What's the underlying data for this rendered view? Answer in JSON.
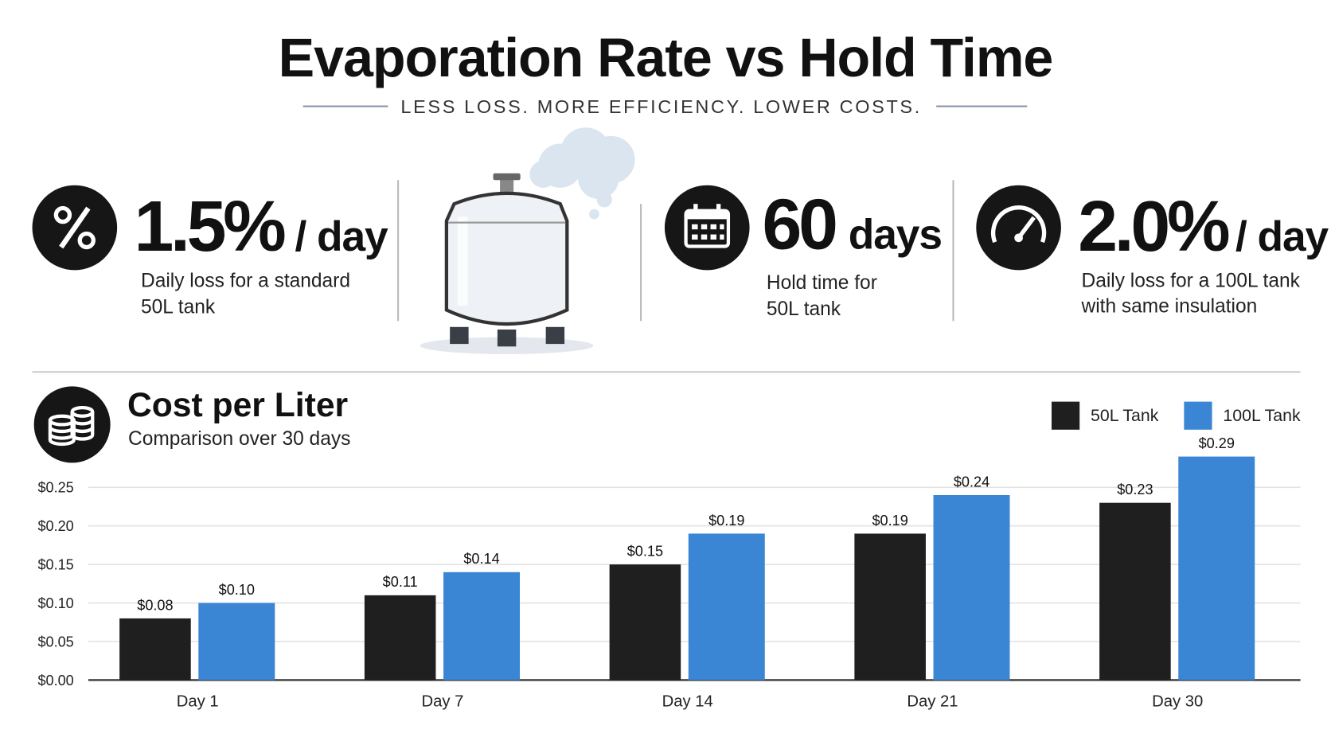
{
  "title": "Evaporation Rate vs Hold Time",
  "subtitle": "LESS LOSS. MORE EFFICIENCY. LOWER COSTS.",
  "stats": [
    {
      "value": "1.5%",
      "unit": "/ day",
      "description": [
        "Daily loss for a standard",
        "50L tank"
      ]
    },
    {
      "value": "60",
      "unit": "days",
      "description": [
        "Hold time for",
        "50L tank"
      ]
    },
    {
      "value": "2.0%",
      "unit": "/ day",
      "description": [
        "Daily loss for a 100L tank",
        "with same insulation"
      ]
    }
  ],
  "chart_data": {
    "type": "bar",
    "title": "Cost per Liter",
    "subtitle": "Comparison over 30 days",
    "categories": [
      "Day 1",
      "Day 7",
      "Day 14",
      "Day 21",
      "Day 30"
    ],
    "series": [
      {
        "name": "50L Tank",
        "color": "#1f1f1f",
        "values": [
          0.08,
          0.11,
          0.15,
          0.19,
          0.23
        ],
        "value_labels": [
          "$0.08",
          "$0.11",
          "$0.15",
          "$0.19",
          "$0.23"
        ]
      },
      {
        "name": "100L Tank",
        "color": "#3a85d4",
        "values": [
          0.1,
          0.14,
          0.19,
          0.24,
          0.29
        ],
        "value_labels": [
          "$0.10",
          "$0.14",
          "$0.19",
          "$0.24",
          "$0.29"
        ]
      }
    ],
    "ylim": [
      0,
      0.3
    ],
    "yticks": [
      {
        "value": 0,
        "label": "$0.00"
      },
      {
        "value": 0.05,
        "label": "$0.05"
      },
      {
        "value": 0.1,
        "label": "$0.10"
      },
      {
        "value": 0.15,
        "label": "$0.15"
      },
      {
        "value": 0.2,
        "label": "$0.20"
      },
      {
        "value": 0.25,
        "label": "$0.25"
      }
    ],
    "grid": true,
    "legend": "top-right"
  }
}
